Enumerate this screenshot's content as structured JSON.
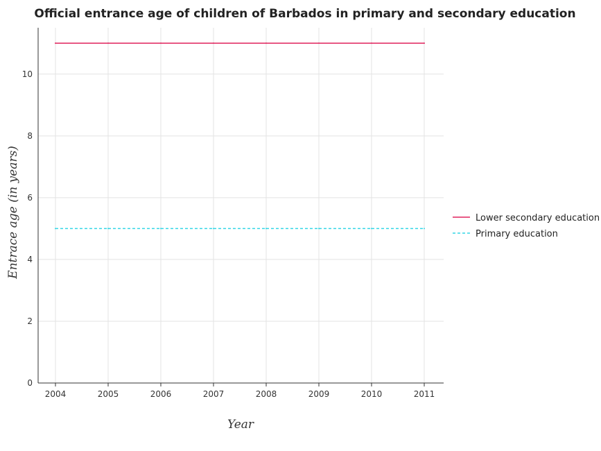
{
  "chart_data": {
    "type": "line",
    "title": "Official entrance age of children of Barbados in primary and secondary education",
    "xlabel": "Year",
    "ylabel": "Entrace age (in  years)",
    "categories": [
      "2004",
      "2005",
      "2006",
      "2007",
      "2008",
      "2009",
      "2010",
      "2011"
    ],
    "yticks": [
      "0",
      "2",
      "4",
      "6",
      "8",
      "10"
    ],
    "ylim": [
      0,
      11.5
    ],
    "grid": true,
    "legend_position": "right",
    "series": [
      {
        "name": "Lower secondary education",
        "values": [
          11,
          11,
          11,
          11,
          11,
          11,
          11,
          11
        ],
        "color": "#e0245e",
        "dash": "solid"
      },
      {
        "name": "Primary education",
        "values": [
          5,
          5,
          5,
          5,
          5,
          5,
          5,
          5
        ],
        "color": "#33d6e6",
        "dash": "dashed"
      }
    ]
  }
}
